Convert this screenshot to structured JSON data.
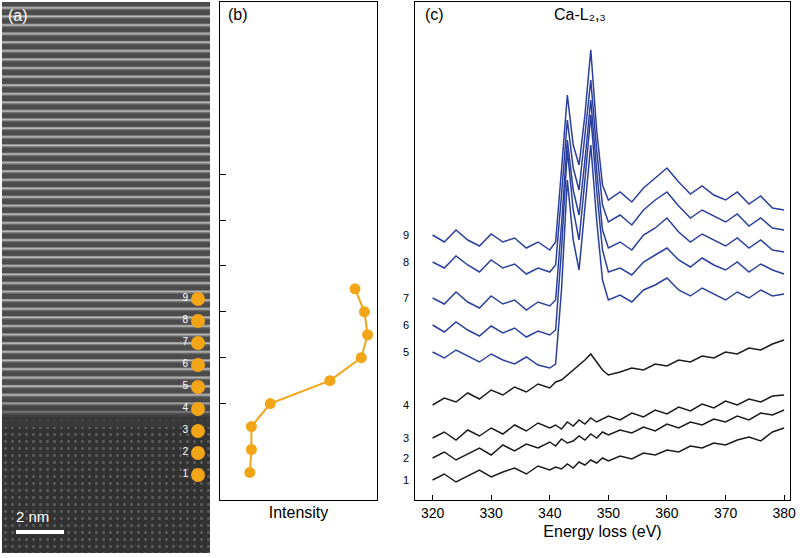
{
  "image": {
    "label": "(a)",
    "scale_bar": "2 nm",
    "points": [
      "1",
      "2",
      "3",
      "4",
      "5",
      "6",
      "7",
      "8",
      "9"
    ],
    "color": "#f2a516"
  },
  "chart_data": [
    {
      "type": "line",
      "label": "(b)",
      "x_label": "Intensity",
      "x": [
        0.19,
        0.2,
        0.2,
        0.32,
        0.7,
        0.9,
        0.94,
        0.92,
        0.86
      ],
      "y": [
        1,
        2,
        3,
        4,
        5,
        6,
        7,
        8,
        9
      ],
      "xlim": [
        0,
        1
      ],
      "ylim": [
        -0.2,
        21.5
      ],
      "yticks": [
        4,
        6,
        8,
        10,
        12,
        14
      ],
      "tick_labels": false,
      "grid": false,
      "color": "#f2a516",
      "marker": "circle"
    },
    {
      "type": "line",
      "label": "(c)",
      "title": "Ca-L₂,₃",
      "x_label": "Energy loss (eV)",
      "x": [
        320,
        322,
        324,
        326,
        328,
        330,
        332,
        334,
        336,
        338,
        340,
        341,
        342,
        343,
        344,
        345,
        346,
        347,
        348,
        349,
        350,
        352,
        354,
        356,
        358,
        360,
        362,
        364,
        366,
        368,
        370,
        372,
        374,
        376,
        378,
        380
      ],
      "series": [
        {
          "name": "1",
          "color": "#1a1a1a",
          "values": [
            60,
            66,
            58,
            64,
            70,
            63,
            68,
            72,
            66,
            74,
            70,
            73,
            71,
            76,
            72,
            78,
            75,
            80,
            77,
            82,
            79,
            84,
            81,
            87,
            85,
            90,
            88,
            94,
            92,
            97,
            95,
            100,
            103,
            99,
            108,
            112
          ]
        },
        {
          "name": "2",
          "color": "#1a1a1a",
          "values": [
            82,
            88,
            80,
            86,
            92,
            85,
            95,
            89,
            96,
            92,
            98,
            94,
            101,
            97,
            99,
            104,
            100,
            106,
            102,
            108,
            105,
            110,
            107,
            113,
            109,
            116,
            112,
            118,
            115,
            121,
            118,
            124,
            120,
            127,
            125,
            130
          ]
        },
        {
          "name": "3",
          "color": "#1a1a1a",
          "values": [
            102,
            108,
            100,
            110,
            104,
            112,
            106,
            115,
            109,
            117,
            112,
            115,
            111,
            118,
            114,
            120,
            116,
            122,
            118,
            121,
            124,
            120,
            127,
            123,
            130,
            126,
            133,
            129,
            136,
            132,
            139,
            135,
            141,
            138,
            144,
            145
          ]
        },
        {
          "name": "4",
          "color": "#1a1a1a",
          "values": [
            135,
            142,
            138,
            147,
            141,
            150,
            145,
            153,
            148,
            156,
            152,
            158,
            160,
            165,
            170,
            175,
            180,
            186,
            178,
            170,
            165,
            168,
            172,
            170,
            176,
            174,
            180,
            178,
            184,
            182,
            188,
            186,
            192,
            190,
            196,
            200
          ]
        },
        {
          "name": "5",
          "color": "#2a3f9d",
          "values": [
            188,
            182,
            190,
            184,
            178,
            186,
            180,
            176,
            183,
            175,
            172,
            176,
            250,
            360,
            300,
            270,
            330,
            395,
            320,
            260,
            240,
            245,
            238,
            250,
            255,
            262,
            250,
            244,
            252,
            246,
            240,
            248,
            242,
            250,
            244,
            246
          ]
        },
        {
          "name": "6",
          "color": "#2a3f9d",
          "values": [
            215,
            208,
            218,
            210,
            204,
            214,
            207,
            212,
            203,
            209,
            205,
            210,
            290,
            390,
            330,
            300,
            360,
            425,
            350,
            290,
            268,
            272,
            265,
            278,
            285,
            292,
            280,
            273,
            282,
            275,
            270,
            278,
            268,
            276,
            270,
            266
          ]
        },
        {
          "name": "7",
          "color": "#2a3f9d",
          "values": [
            242,
            236,
            248,
            238,
            232,
            244,
            236,
            240,
            230,
            238,
            234,
            240,
            315,
            400,
            350,
            325,
            380,
            440,
            370,
            310,
            292,
            298,
            290,
            305,
            312,
            322,
            308,
            298,
            306,
            300,
            294,
            302,
            292,
            300,
            290,
            288
          ]
        },
        {
          "name": "8",
          "color": "#2a3f9d",
          "values": [
            278,
            272,
            284,
            275,
            268,
            280,
            272,
            276,
            266,
            272,
            268,
            275,
            345,
            420,
            372,
            350,
            405,
            460,
            390,
            335,
            318,
            325,
            315,
            330,
            340,
            348,
            334,
            322,
            330,
            324,
            318,
            326,
            314,
            322,
            312,
            310
          ]
        },
        {
          "name": "9",
          "color": "#2a3f9d",
          "values": [
            305,
            298,
            310,
            300,
            294,
            306,
            298,
            302,
            292,
            298,
            290,
            298,
            370,
            445,
            395,
            375,
            425,
            490,
            410,
            355,
            340,
            348,
            338,
            352,
            362,
            372,
            358,
            346,
            354,
            345,
            340,
            348,
            336,
            344,
            332,
            330
          ]
        }
      ],
      "xlim": [
        317,
        381
      ],
      "ylim": [
        40,
        538
      ],
      "xticks": [
        320,
        330,
        340,
        350,
        360,
        370,
        380
      ],
      "tick_labels": "x",
      "grid": false
    }
  ]
}
